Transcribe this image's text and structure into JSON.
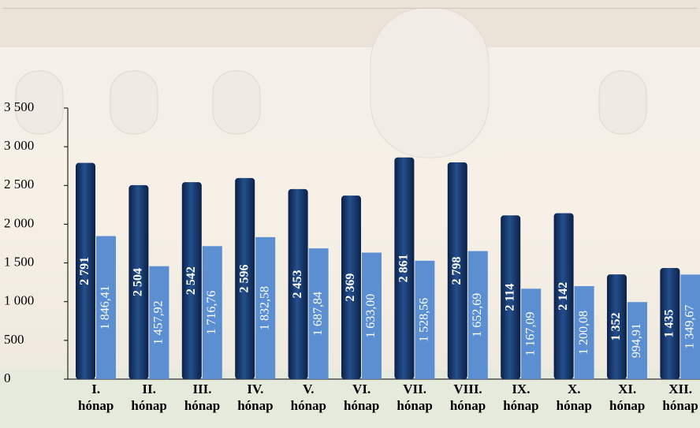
{
  "chart_data": {
    "type": "bar",
    "categories": [
      "I. hónap",
      "II. hónap",
      "III. hónap",
      "IV. hónap",
      "V. hónap",
      "VI. hónap",
      "VII. hónap",
      "VIII. hónap",
      "IX. hónap",
      "X. hónap",
      "XI. hónap",
      "XII. hónap"
    ],
    "series": [
      {
        "color": "#16386c",
        "values": [
          2791,
          2504,
          2542,
          2596,
          2453,
          2369,
          2861,
          2798,
          2114,
          2142,
          1352,
          1435
        ],
        "value_labels": [
          "2 791",
          "2 504",
          "2 542",
          "2 596",
          "2 453",
          "2 369",
          "2 861",
          "2 798",
          "2 114",
          "2 142",
          "1 352",
          "1 435"
        ]
      },
      {
        "color": "#5b8fd2",
        "values": [
          1846.41,
          1457.92,
          1716.76,
          1832.58,
          1687.84,
          1633.0,
          1528.56,
          1652.69,
          1167.09,
          1200.08,
          994.91,
          1349.67
        ],
        "value_labels": [
          "1 846,41",
          "1 457,92",
          "1 716,76",
          "1 832,58",
          "1 687,84",
          "1 633,00",
          "1 528,56",
          "1 652,69",
          "1 167,09",
          "1 200,08",
          "994,91",
          "1 349,67"
        ]
      }
    ],
    "ylim": [
      0,
      3500
    ],
    "yticks": [
      0,
      500,
      {
        "value": 1000,
        "label": "1 000"
      },
      {
        "value": 1500,
        "label": "1 500"
      },
      {
        "value": 2000,
        "label": "2 000"
      },
      {
        "value": 2500,
        "label": "2 500"
      },
      {
        "value": 3000,
        "label": "3 000"
      },
      {
        "value": 3500,
        "label": "3 500"
      }
    ]
  }
}
